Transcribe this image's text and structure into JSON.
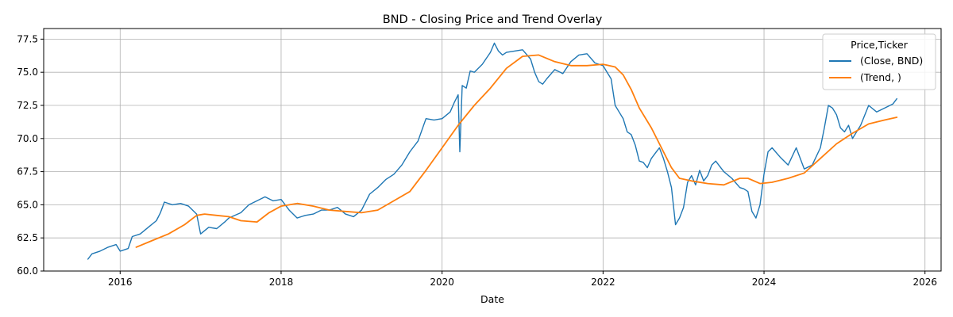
{
  "chart_data": {
    "type": "line",
    "title": "BND - Closing Price and Trend Overlay",
    "xlabel": "Date",
    "ylabel": "",
    "xlim": [
      2015.05,
      2026.2
    ],
    "ylim": [
      60.0,
      78.3
    ],
    "x_ticks": [
      2016,
      2018,
      2020,
      2022,
      2024,
      2026
    ],
    "x_tick_labels": [
      "2016",
      "2018",
      "2020",
      "2022",
      "2024",
      "2026"
    ],
    "y_ticks": [
      60.0,
      62.5,
      65.0,
      67.5,
      70.0,
      72.5,
      75.0,
      77.5
    ],
    "y_tick_labels": [
      "60.0",
      "62.5",
      "65.0",
      "67.5",
      "70.0",
      "72.5",
      "75.0",
      "77.5"
    ],
    "grid": true,
    "legend": {
      "title": "Price,Ticker",
      "placement": "top-right",
      "entries": [
        "(Close, BND)",
        "(Trend, )"
      ]
    },
    "series": [
      {
        "name": "(Close, BND)",
        "color": "#1f77b4",
        "x": [
          2015.6,
          2015.65,
          2015.75,
          2015.85,
          2015.95,
          2016.0,
          2016.1,
          2016.15,
          2016.25,
          2016.35,
          2016.45,
          2016.5,
          2016.55,
          2016.65,
          2016.75,
          2016.85,
          2016.95,
          2017.0,
          2017.1,
          2017.2,
          2017.3,
          2017.35,
          2017.5,
          2017.6,
          2017.7,
          2017.8,
          2017.9,
          2018.0,
          2018.1,
          2018.2,
          2018.3,
          2018.4,
          2018.5,
          2018.6,
          2018.7,
          2018.8,
          2018.9,
          2019.0,
          2019.1,
          2019.2,
          2019.3,
          2019.4,
          2019.5,
          2019.6,
          2019.7,
          2019.8,
          2019.9,
          2020.0,
          2020.1,
          2020.15,
          2020.2,
          2020.22,
          2020.25,
          2020.3,
          2020.35,
          2020.4,
          2020.5,
          2020.6,
          2020.65,
          2020.7,
          2020.75,
          2020.8,
          2020.9,
          2021.0,
          2021.1,
          2021.15,
          2021.2,
          2021.25,
          2021.3,
          2021.4,
          2021.5,
          2021.6,
          2021.7,
          2021.8,
          2021.9,
          2022.0,
          2022.1,
          2022.15,
          2022.2,
          2022.25,
          2022.3,
          2022.35,
          2022.4,
          2022.45,
          2022.5,
          2022.55,
          2022.6,
          2022.65,
          2022.7,
          2022.75,
          2022.8,
          2022.85,
          2022.9,
          2022.95,
          2023.0,
          2023.05,
          2023.1,
          2023.15,
          2023.2,
          2023.25,
          2023.3,
          2023.35,
          2023.4,
          2023.45,
          2023.5,
          2023.6,
          2023.7,
          2023.75,
          2023.8,
          2023.85,
          2023.9,
          2023.95,
          2024.0,
          2024.05,
          2024.1,
          2024.2,
          2024.3,
          2024.4,
          2024.5,
          2024.6,
          2024.7,
          2024.75,
          2024.8,
          2024.85,
          2024.9,
          2024.95,
          2025.0,
          2025.05,
          2025.1,
          2025.15,
          2025.2,
          2025.3,
          2025.4,
          2025.5,
          2025.6,
          2025.65
        ],
        "values": [
          60.9,
          61.3,
          61.5,
          61.8,
          62.0,
          61.5,
          61.7,
          62.6,
          62.8,
          63.3,
          63.8,
          64.4,
          65.2,
          65.0,
          65.1,
          64.9,
          64.3,
          62.8,
          63.3,
          63.2,
          63.7,
          64.0,
          64.4,
          65.0,
          65.3,
          65.6,
          65.3,
          65.4,
          64.6,
          64.0,
          64.2,
          64.3,
          64.6,
          64.6,
          64.8,
          64.3,
          64.1,
          64.6,
          65.8,
          66.3,
          66.9,
          67.3,
          68.0,
          69.0,
          69.8,
          71.5,
          71.4,
          71.5,
          72.0,
          72.7,
          73.3,
          69.0,
          74.0,
          73.8,
          75.1,
          75.0,
          75.6,
          76.5,
          77.2,
          76.6,
          76.3,
          76.5,
          76.6,
          76.7,
          76.0,
          75.0,
          74.3,
          74.1,
          74.5,
          75.2,
          74.9,
          75.8,
          76.3,
          76.4,
          75.7,
          75.5,
          74.5,
          72.5,
          72.0,
          71.5,
          70.5,
          70.3,
          69.5,
          68.3,
          68.2,
          67.8,
          68.5,
          68.9,
          69.3,
          68.5,
          67.5,
          66.3,
          63.5,
          64.0,
          64.8,
          66.7,
          67.2,
          66.5,
          67.6,
          66.8,
          67.2,
          68.0,
          68.3,
          67.9,
          67.5,
          67.0,
          66.3,
          66.2,
          66.0,
          64.5,
          64.0,
          65.0,
          67.3,
          69.0,
          69.3,
          68.6,
          68.0,
          69.3,
          67.7,
          68.0,
          69.3,
          70.8,
          72.5,
          72.3,
          71.8,
          70.8,
          70.5,
          71.0,
          70.0,
          70.5,
          71.0,
          72.5,
          72.0,
          72.3,
          72.6,
          73.0
        ]
      },
      {
        "name": "(Trend, )",
        "color": "#ff7f0e",
        "x": [
          2016.2,
          2016.4,
          2016.6,
          2016.8,
          2016.95,
          2017.05,
          2017.2,
          2017.35,
          2017.5,
          2017.7,
          2017.85,
          2018.0,
          2018.2,
          2018.4,
          2018.6,
          2018.8,
          2019.0,
          2019.2,
          2019.4,
          2019.6,
          2019.8,
          2020.0,
          2020.2,
          2020.4,
          2020.6,
          2020.8,
          2021.0,
          2021.2,
          2021.4,
          2021.6,
          2021.8,
          2022.0,
          2022.15,
          2022.25,
          2022.35,
          2022.45,
          2022.6,
          2022.75,
          2022.85,
          2022.95,
          2023.1,
          2023.3,
          2023.5,
          2023.7,
          2023.8,
          2023.95,
          2024.1,
          2024.3,
          2024.5,
          2024.7,
          2024.9,
          2025.1,
          2025.3,
          2025.5,
          2025.65
        ],
        "values": [
          61.8,
          62.3,
          62.8,
          63.5,
          64.2,
          64.3,
          64.2,
          64.1,
          63.8,
          63.7,
          64.4,
          64.9,
          65.1,
          64.9,
          64.6,
          64.5,
          64.4,
          64.6,
          65.3,
          66.0,
          67.6,
          69.3,
          71.0,
          72.5,
          73.8,
          75.3,
          76.2,
          76.3,
          75.8,
          75.5,
          75.5,
          75.6,
          75.4,
          74.8,
          73.7,
          72.3,
          70.8,
          69.0,
          67.8,
          67.0,
          66.8,
          66.6,
          66.5,
          67.0,
          67.0,
          66.6,
          66.7,
          67.0,
          67.4,
          68.5,
          69.6,
          70.4,
          71.1,
          71.4,
          71.6
        ]
      }
    ]
  }
}
